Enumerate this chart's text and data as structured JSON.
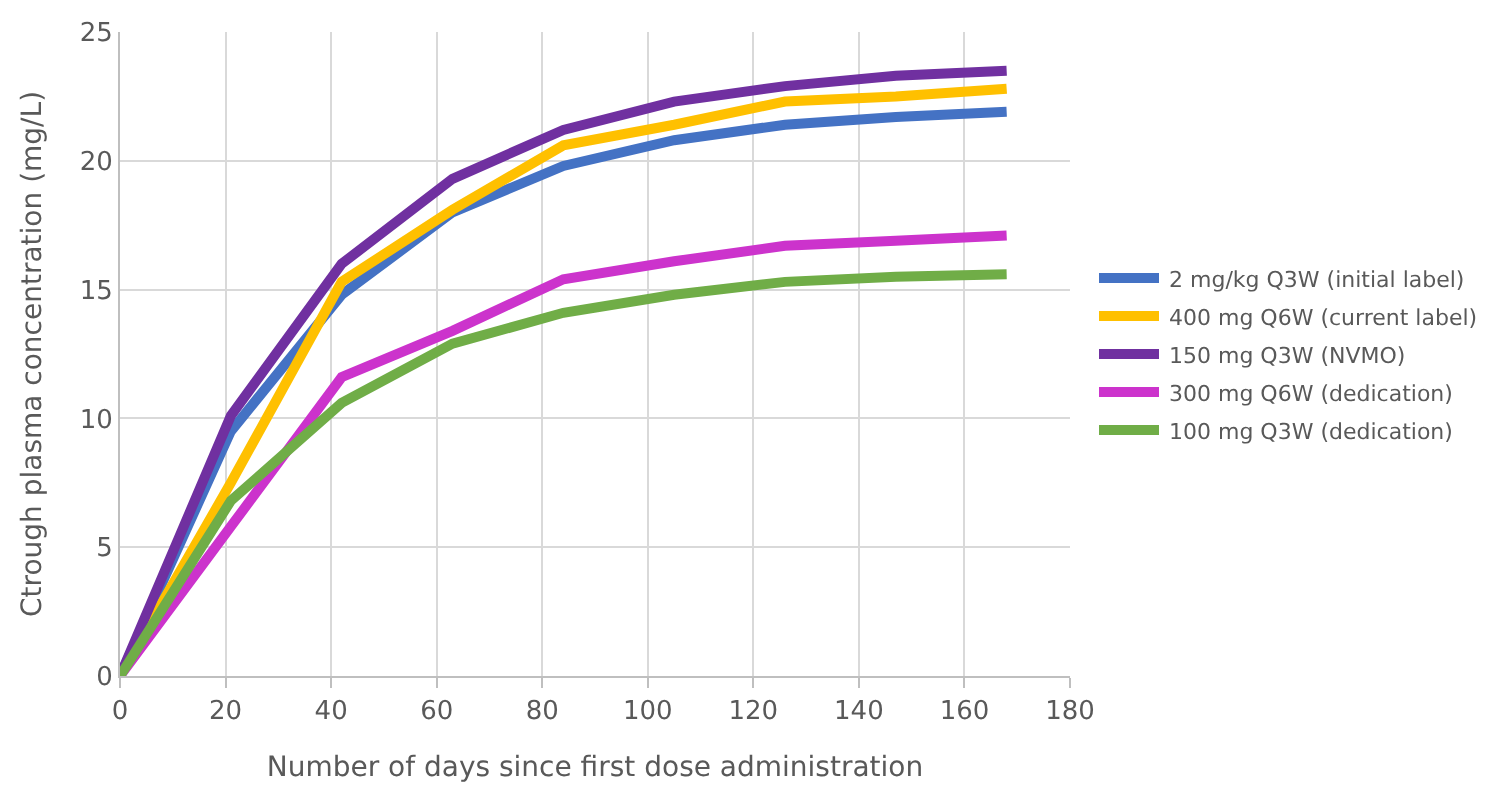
{
  "chart_data": {
    "type": "line",
    "xlabel": "Number of days since first dose administration",
    "ylabel": "Ctrough plasma concentration (mg/L)",
    "x": [
      0,
      21,
      42,
      63,
      84,
      105,
      126,
      147,
      168
    ],
    "series": [
      {
        "name": "2 mg/kg Q3W (initial label)",
        "color": "#4472c4",
        "values": [
          0,
          9.5,
          14.8,
          18.0,
          19.8,
          20.8,
          21.4,
          21.7,
          21.9
        ]
      },
      {
        "name": "400 mg Q6W (current label)",
        "color": "#ffc000",
        "values": [
          0,
          7.5,
          15.3,
          18.1,
          20.6,
          21.4,
          22.3,
          22.5,
          22.8
        ]
      },
      {
        "name": "150 mg Q3W (NVMO)",
        "color": "#7030a0",
        "values": [
          0,
          10.1,
          16.0,
          19.3,
          21.2,
          22.3,
          22.9,
          23.3,
          23.5
        ]
      },
      {
        "name": "300 mg Q6W (dedication)",
        "color": "#cc33cc",
        "values": [
          0,
          5.8,
          11.6,
          13.4,
          15.4,
          16.1,
          16.7,
          16.9,
          17.1
        ]
      },
      {
        "name": "100 mg Q3W (dedication)",
        "color": "#70ad47",
        "values": [
          0,
          6.8,
          10.6,
          12.9,
          14.1,
          14.8,
          15.3,
          15.5,
          15.6
        ]
      }
    ],
    "xlim": [
      0,
      180
    ],
    "xticks": [
      0,
      20,
      40,
      60,
      80,
      100,
      120,
      140,
      160,
      180
    ],
    "ylim": [
      0,
      25
    ],
    "yticks": [
      0,
      5,
      10,
      15,
      20,
      25
    ],
    "grid": true,
    "legend": "right",
    "marker": "none",
    "line_style": "solid"
  }
}
